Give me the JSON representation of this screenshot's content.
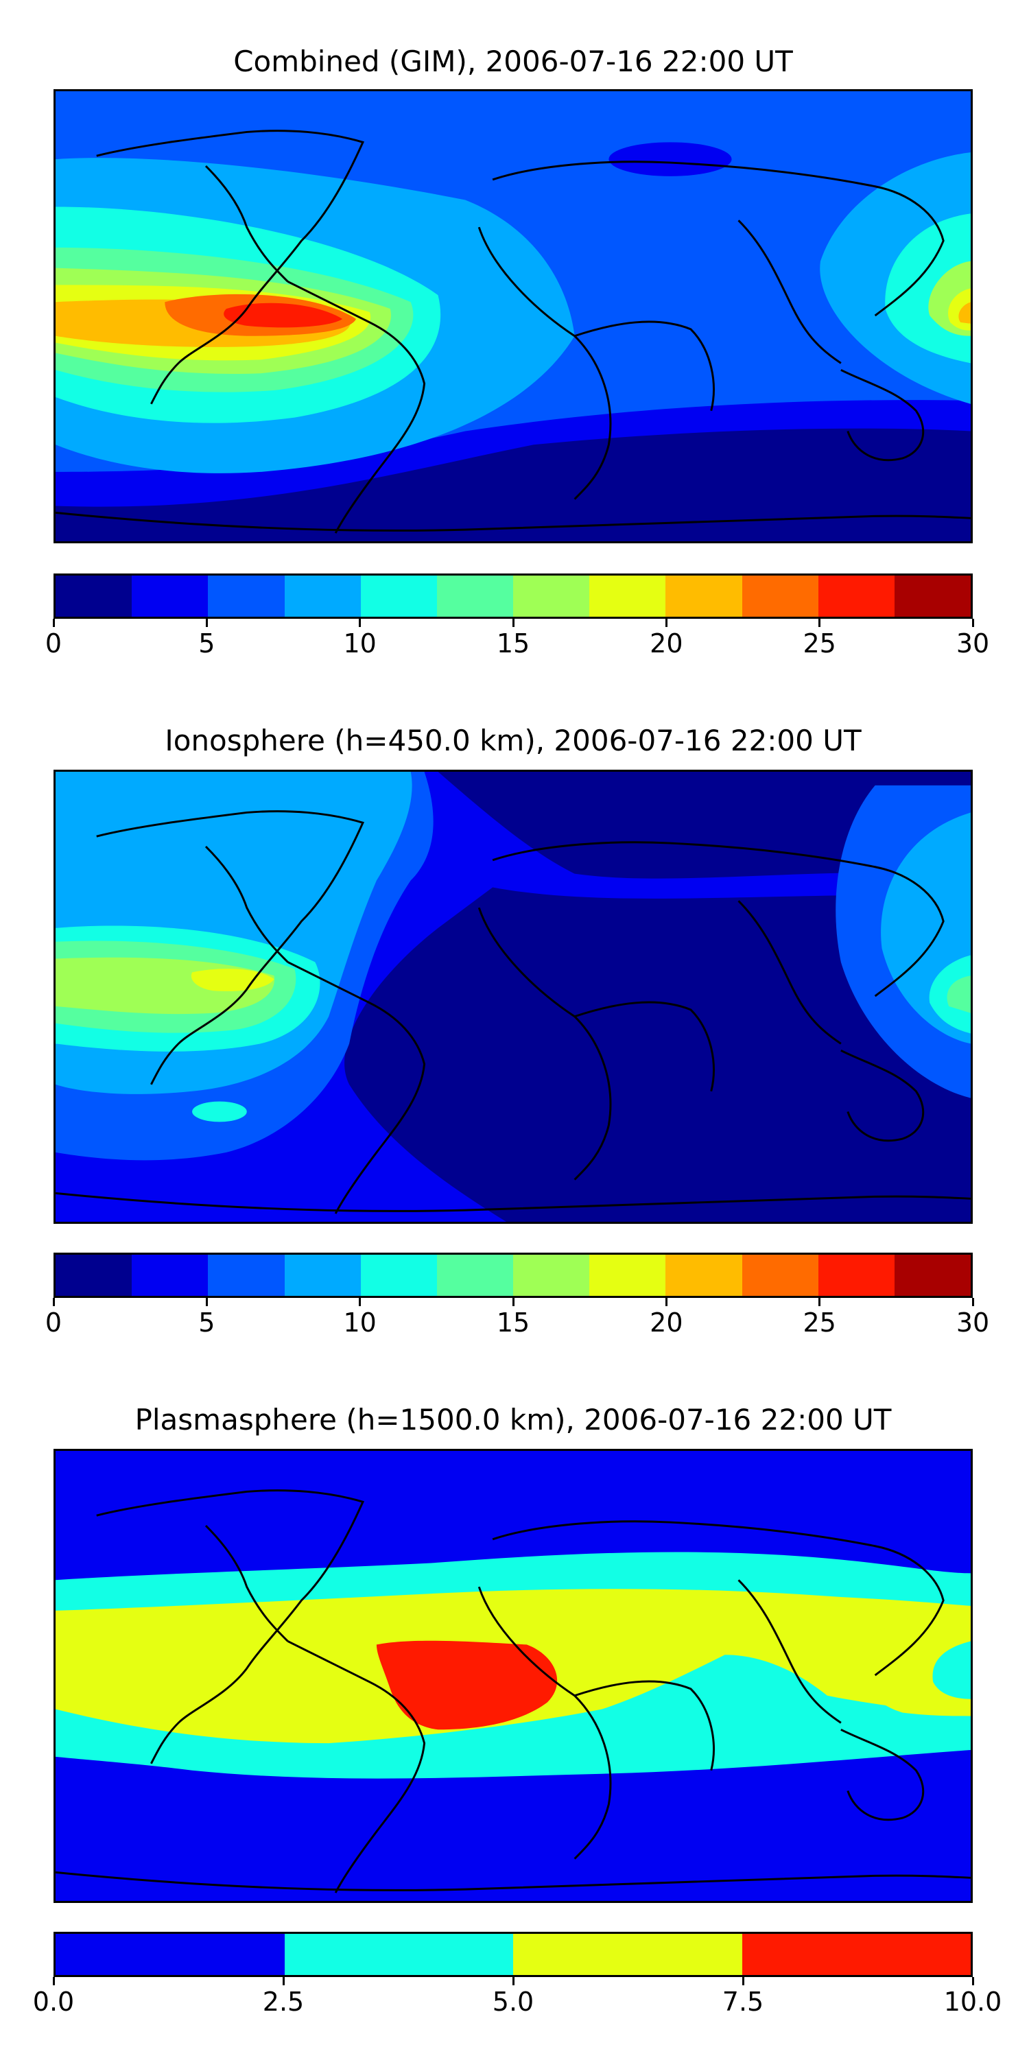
{
  "panels": [
    {
      "title": "Combined (GIM), 2006-07-16 22:00 UT",
      "map_type": "TEC contour map",
      "colorbar": {
        "ticks": [
          "0",
          "5",
          "10",
          "15",
          "20",
          "25",
          "30"
        ],
        "tick_values": [
          0,
          5,
          10,
          15,
          20,
          25,
          30
        ],
        "range": [
          0,
          30
        ],
        "levels": 12,
        "colors": [
          "#00008f",
          "#0000f2",
          "#0057ff",
          "#00aaff",
          "#12ffe5",
          "#55ff9f",
          "#9fff55",
          "#e5ff12",
          "#ffbc00",
          "#ff6b00",
          "#ff1a00",
          "#a80000"
        ]
      }
    },
    {
      "title": "Ionosphere  (h=450.0 km), 2006-07-16 22:00 UT",
      "map_type": "TEC contour map",
      "colorbar": {
        "ticks": [
          "0",
          "5",
          "10",
          "15",
          "20",
          "25",
          "30"
        ],
        "tick_values": [
          0,
          5,
          10,
          15,
          20,
          25,
          30
        ],
        "range": [
          0,
          30
        ],
        "levels": 12,
        "colors": [
          "#00008f",
          "#0000f2",
          "#0057ff",
          "#00aaff",
          "#12ffe5",
          "#55ff9f",
          "#9fff55",
          "#e5ff12",
          "#ffbc00",
          "#ff6b00",
          "#ff1a00",
          "#a80000"
        ]
      }
    },
    {
      "title": "Plasmasphere (h=1500.0 km), 2006-07-16 22:00 UT",
      "map_type": "TEC contour map",
      "colorbar": {
        "ticks": [
          "0.0",
          "2.5",
          "5.0",
          "7.5",
          "10.0"
        ],
        "tick_values": [
          0,
          2.5,
          5,
          7.5,
          10
        ],
        "range": [
          0,
          10
        ],
        "levels": 4,
        "colors": [
          "#0000f2",
          "#12ffe5",
          "#e5ff12",
          "#ff1a00"
        ]
      }
    }
  ]
}
